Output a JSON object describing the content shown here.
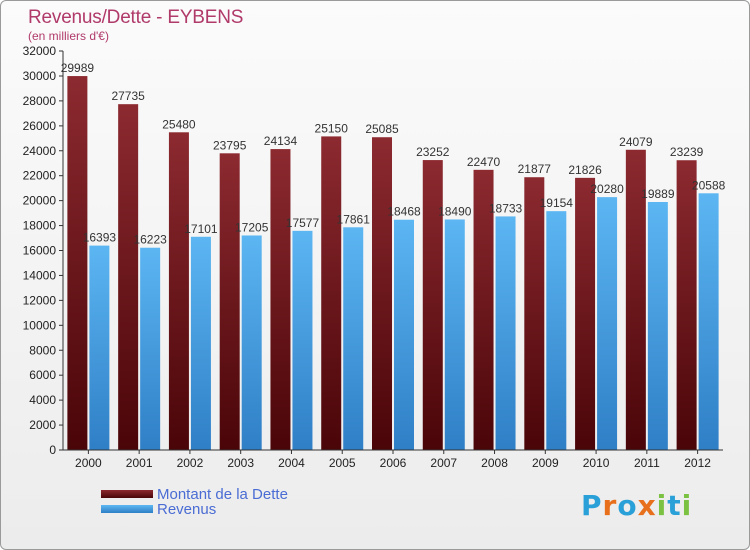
{
  "chart_data": {
    "type": "bar",
    "title": "Revenus/Dette - EYBENS",
    "subtitle": "(en milliers d'€)",
    "categories": [
      "2000",
      "2001",
      "2002",
      "2003",
      "2004",
      "2005",
      "2006",
      "2007",
      "2008",
      "2009",
      "2010",
      "2011",
      "2012"
    ],
    "series": [
      {
        "name": "Montant de la Dette",
        "color": "#7a1a1f",
        "values": [
          29989,
          27735,
          25480,
          23795,
          24134,
          25150,
          25085,
          23252,
          22470,
          21877,
          21826,
          24079,
          23239
        ]
      },
      {
        "name": "Revenus",
        "color": "#4aa3e8",
        "values": [
          16393,
          16223,
          17101,
          17205,
          17577,
          17861,
          18468,
          18490,
          18733,
          19154,
          20280,
          19889,
          20588
        ]
      }
    ],
    "ylim": [
      0,
      32000
    ],
    "yticks": [
      0,
      2000,
      4000,
      6000,
      8000,
      10000,
      12000,
      14000,
      16000,
      18000,
      20000,
      22000,
      24000,
      26000,
      28000,
      30000,
      32000
    ],
    "grid": false,
    "legend": "bottom-left"
  },
  "logo": {
    "text": "Proxiti",
    "letters": [
      "P",
      "r",
      "o",
      "x",
      "i",
      "t",
      "i"
    ],
    "colors": [
      "#2aa0d8",
      "#e8701c",
      "#2aa0d8",
      "#e8701c",
      "#7cc242",
      "#2aa0d8",
      "#7cc242"
    ]
  }
}
